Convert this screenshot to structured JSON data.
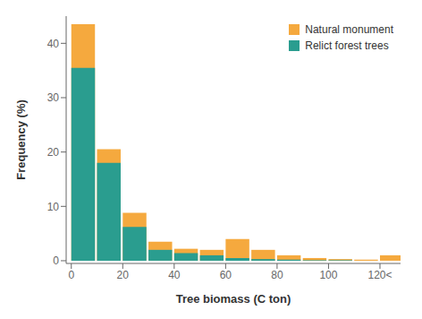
{
  "chart_data": {
    "type": "histogram",
    "xlabel": "Tree biomass (C ton)",
    "ylabel": "Frequency (%)",
    "bins": [
      0,
      10,
      20,
      30,
      40,
      50,
      60,
      70,
      80,
      90,
      100,
      110,
      120,
      130
    ],
    "series": [
      {
        "name": "Natural monument",
        "color": "#F5A93E",
        "values": [
          43.5,
          20.5,
          8.8,
          3.5,
          2.2,
          2.0,
          4.0,
          2.0,
          1.0,
          0.5,
          0.3,
          0.2,
          1.0
        ]
      },
      {
        "name": "Relict forest trees",
        "color": "#2A9D8F",
        "values": [
          35.5,
          18.0,
          6.2,
          2.0,
          1.4,
          1.0,
          0.5,
          0.3,
          0.2,
          0.1,
          0.1,
          0.0,
          0.0
        ]
      }
    ],
    "xlim": [
      -2,
      128
    ],
    "ylim": [
      -0.5,
      45
    ],
    "xticks": [
      0,
      20,
      40,
      60,
      80,
      100,
      {
        "value": 120,
        "label": "120<"
      }
    ],
    "yticks": [
      0,
      10,
      20,
      30,
      40
    ],
    "legend": "upper right"
  }
}
